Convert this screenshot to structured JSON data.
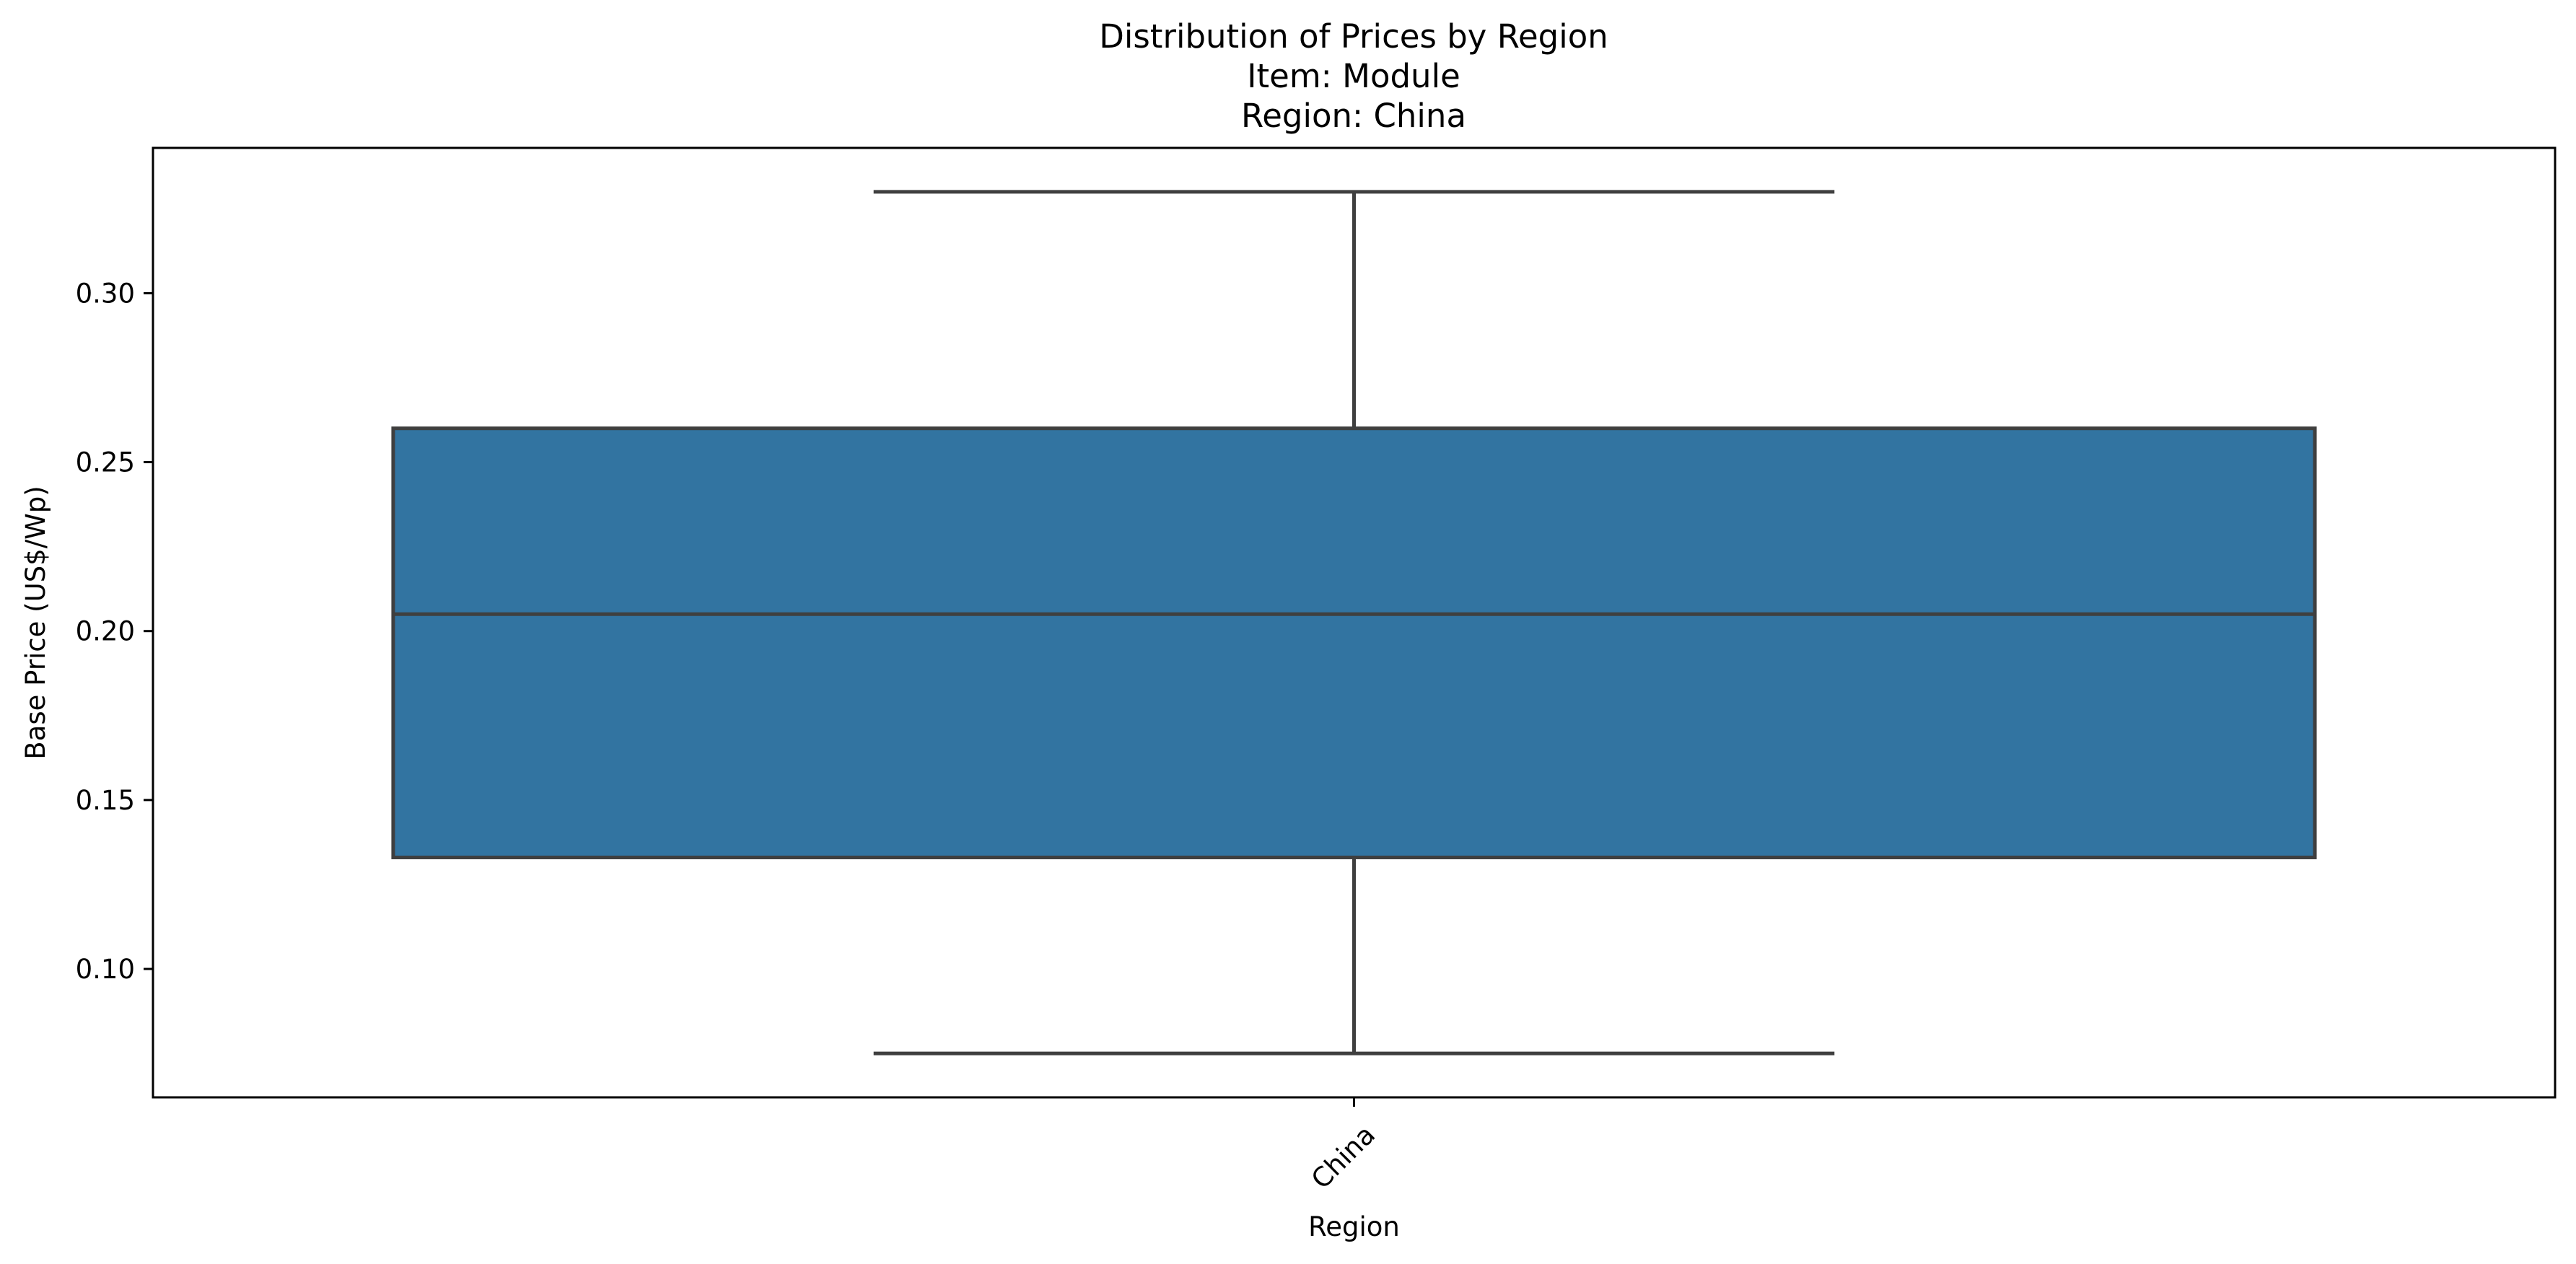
{
  "chart_data": {
    "type": "box",
    "title_lines": [
      "Distribution of Prices by Region",
      "Item: Module",
      "Region: China"
    ],
    "xlabel": "Region",
    "ylabel": "Base Price (US$/Wp)",
    "categories": [
      "China"
    ],
    "boxes": [
      {
        "category": "China",
        "whisker_low": 0.075,
        "q1": 0.133,
        "median": 0.205,
        "q3": 0.26,
        "whisker_high": 0.33
      }
    ],
    "ylim": [
      0.062,
      0.343
    ],
    "yticks": [
      0.1,
      0.15,
      0.2,
      0.25,
      0.3
    ],
    "ytick_labels": [
      "0.10",
      "0.15",
      "0.20",
      "0.25",
      "0.30"
    ],
    "xtick_rotation_deg": 45,
    "grid": false,
    "colors": {
      "box_fill": "#3274a1",
      "box_edge": "#3f3f3f",
      "axes": "#000000"
    }
  }
}
